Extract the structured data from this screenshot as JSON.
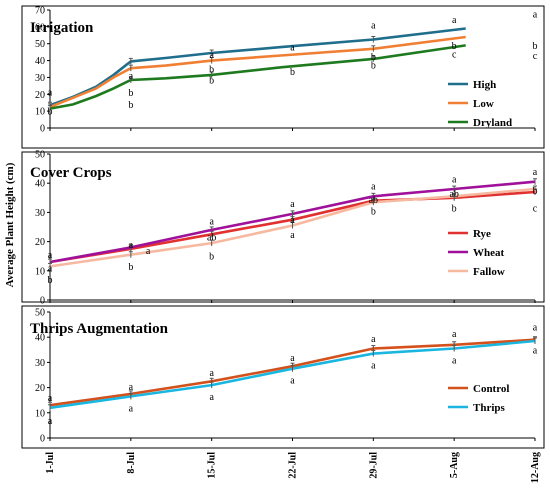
{
  "ylabel": "Average Plant Height (cm)",
  "x_labels": [
    "1-Jul",
    "8-Jul",
    "15-Jul",
    "22-Jul",
    "29-Jul",
    "5-Aug",
    "12-Aug"
  ],
  "chart_data": [
    {
      "type": "line",
      "title": "Irrigation",
      "ylim": [
        0,
        70
      ],
      "yticks": [
        0,
        10,
        20,
        30,
        40,
        50,
        60,
        70
      ],
      "legend_position": "right",
      "x": [
        0,
        2,
        4,
        5.5,
        7,
        10,
        14,
        20,
        28,
        36
      ],
      "series": [
        {
          "name": "High",
          "color": "#1f6e8c",
          "x": [
            0,
            2,
            4,
            5.5,
            7,
            10,
            14,
            20,
            28,
            36
          ],
          "values": [
            13.5,
            18.5,
            24.5,
            31.5,
            39.5,
            41.5,
            44.5,
            48,
            52.5,
            59
          ]
        },
        {
          "name": "Low",
          "color": "#f07f34",
          "x": [
            0,
            2,
            4,
            5.5,
            7,
            10,
            14,
            20,
            28,
            36
          ],
          "values": [
            12.5,
            18,
            23.5,
            30,
            35.5,
            37,
            40,
            43,
            47,
            54
          ]
        },
        {
          "name": "Dryland",
          "color": "#1e7a1e",
          "x": [
            0,
            2,
            4,
            5.5,
            7,
            10,
            14,
            20,
            28,
            36
          ],
          "values": [
            11.5,
            14,
            19,
            23.5,
            28.5,
            29.5,
            31.5,
            36,
            41,
            49
          ]
        }
      ],
      "annotations": [
        {
          "x": 0,
          "y": 21.5,
          "text": "a"
        },
        {
          "x": 0,
          "y": 10,
          "text": "b"
        },
        {
          "x": 7,
          "y": 31,
          "text": "a"
        },
        {
          "x": 7,
          "y": 21,
          "text": "b"
        },
        {
          "x": 7,
          "y": 14,
          "text": "b"
        },
        {
          "x": 14,
          "y": 43.5,
          "text": "a"
        },
        {
          "x": 14,
          "y": 35,
          "text": "b"
        },
        {
          "x": 14,
          "y": 28.5,
          "text": "b"
        },
        {
          "x": 21,
          "y": 48,
          "text": "a"
        },
        {
          "x": 21,
          "y": 33.5,
          "text": "b"
        },
        {
          "x": 28,
          "y": 61,
          "text": "a"
        },
        {
          "x": 28,
          "y": 42.5,
          "text": "b"
        },
        {
          "x": 28,
          "y": 37.5,
          "text": "b"
        },
        {
          "x": 35,
          "y": 64.5,
          "text": "a"
        },
        {
          "x": 35,
          "y": 49,
          "text": "b"
        },
        {
          "x": 35,
          "y": 44,
          "text": "c"
        },
        {
          "x": 42,
          "y": 67.5,
          "text": "a"
        },
        {
          "x": 42,
          "y": 49,
          "text": "b"
        },
        {
          "x": 42,
          "y": 43,
          "text": "c"
        }
      ],
      "annotations_x": [
        0,
        7,
        14,
        21,
        28,
        35,
        42
      ]
    },
    {
      "type": "line",
      "title": "Cover Crops",
      "ylim": [
        0,
        50
      ],
      "yticks": [
        0,
        10,
        20,
        30,
        40,
        50
      ],
      "legend_position": "right",
      "series": [
        {
          "name": "Rye",
          "color": "#e03030",
          "x": [
            0,
            7,
            14,
            21,
            28,
            35,
            42
          ],
          "values": [
            13,
            17.5,
            22.5,
            27.5,
            34,
            35,
            37
          ]
        },
        {
          "name": "Wheat",
          "color": "#a0109a",
          "x": [
            0,
            7,
            14,
            21,
            28,
            35,
            42
          ],
          "values": [
            13,
            18,
            24,
            29.5,
            35.5,
            38,
            40.5
          ]
        },
        {
          "name": "Fallow",
          "color": "#f7b8a0",
          "x": [
            0,
            7,
            14,
            21,
            28,
            35,
            42
          ],
          "values": [
            11.5,
            15.5,
            19.5,
            25.5,
            33.5,
            35.5,
            38
          ]
        }
      ],
      "annotations": [
        {
          "x": 0,
          "y": 15.5,
          "text": "a"
        },
        {
          "x": 0,
          "y": 11,
          "text": "a"
        },
        {
          "x": 0,
          "y": 7,
          "text": "b"
        },
        {
          "x": 7,
          "y": 19,
          "text": "a"
        },
        {
          "x": 8.5,
          "y": 17,
          "text": "a"
        },
        {
          "x": 7,
          "y": 11.5,
          "text": "b"
        },
        {
          "x": 14,
          "y": 27,
          "text": "a"
        },
        {
          "x": 14,
          "y": 21.5,
          "text": "ab"
        },
        {
          "x": 14,
          "y": 15,
          "text": "b"
        },
        {
          "x": 21,
          "y": 33,
          "text": "a"
        },
        {
          "x": 21,
          "y": 27.5,
          "text": "a"
        },
        {
          "x": 21,
          "y": 22.5,
          "text": "a"
        },
        {
          "x": 28,
          "y": 39,
          "text": "a"
        },
        {
          "x": 28,
          "y": 34.5,
          "text": "ab"
        },
        {
          "x": 28,
          "y": 30.5,
          "text": "b"
        },
        {
          "x": 35,
          "y": 41.5,
          "text": "a"
        },
        {
          "x": 35,
          "y": 36.5,
          "text": "ab"
        },
        {
          "x": 35,
          "y": 31.5,
          "text": "b"
        },
        {
          "x": 42,
          "y": 44,
          "text": "a"
        },
        {
          "x": 42,
          "y": 37.5,
          "text": "b"
        },
        {
          "x": 42,
          "y": 31.5,
          "text": "c"
        }
      ]
    },
    {
      "type": "line",
      "title": "Thrips Augmentation",
      "ylim": [
        0,
        50
      ],
      "yticks": [
        0,
        10,
        20,
        30,
        40,
        50
      ],
      "legend_position": "right",
      "series": [
        {
          "name": "Control",
          "color": "#d4511b",
          "x": [
            0,
            7,
            14,
            21,
            28,
            35,
            42
          ],
          "values": [
            13,
            17.5,
            22.5,
            28.5,
            35.5,
            37,
            39
          ]
        },
        {
          "name": "Thrips",
          "color": "#1ab6e0",
          "x": [
            0,
            7,
            14,
            21,
            28,
            35,
            42
          ],
          "values": [
            12,
            16.5,
            21,
            27.5,
            33.5,
            35.5,
            38.5
          ]
        }
      ],
      "annotations": [
        {
          "x": 0,
          "y": 16,
          "text": "a"
        },
        {
          "x": 0,
          "y": 7,
          "text": "a"
        },
        {
          "x": 7,
          "y": 20.5,
          "text": "a"
        },
        {
          "x": 7,
          "y": 12,
          "text": "a"
        },
        {
          "x": 14,
          "y": 26,
          "text": "a"
        },
        {
          "x": 14,
          "y": 16.5,
          "text": "a"
        },
        {
          "x": 21,
          "y": 32,
          "text": "a"
        },
        {
          "x": 21,
          "y": 23,
          "text": "a"
        },
        {
          "x": 28,
          "y": 39.5,
          "text": "a"
        },
        {
          "x": 28,
          "y": 29,
          "text": "a"
        },
        {
          "x": 35,
          "y": 41.5,
          "text": "a"
        },
        {
          "x": 35,
          "y": 31,
          "text": "a"
        },
        {
          "x": 42,
          "y": 44,
          "text": "a"
        },
        {
          "x": 42,
          "y": 35,
          "text": "a"
        }
      ]
    }
  ]
}
